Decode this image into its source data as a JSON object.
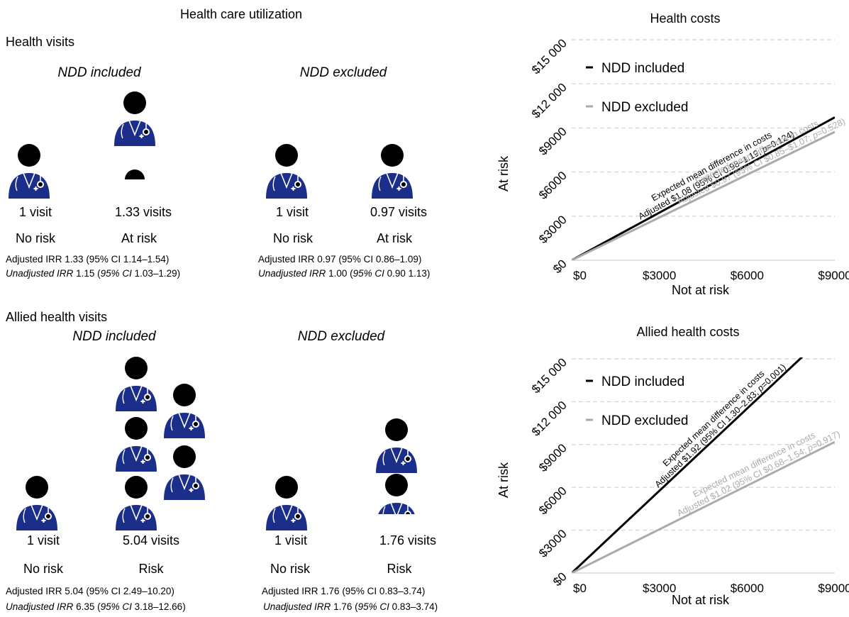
{
  "title": "Health care utilization",
  "colors": {
    "icon_body": "#1b2e8a",
    "icon_head": "#000000",
    "included": "#000000",
    "excluded": "#aaaaaa",
    "grid": "#d9d9d9"
  },
  "health_visits": {
    "label": "Health visits",
    "included": {
      "label": "NDD included",
      "no_risk": {
        "value": "1 visit",
        "group": "No risk"
      },
      "at_risk": {
        "value": "1.33 visits",
        "group": "At risk"
      },
      "adjusted": "Adjusted IRR 1.33 (95% CI 1.14–1.54)",
      "unadj_label": "Unadjusted IRR",
      "unadj_mid": " 1.15 (",
      "unadj_ci": "95% CI",
      "unadj_end": " 1.03–1.29)"
    },
    "excluded": {
      "label": "NDD excluded",
      "no_risk": {
        "value": "1 visit",
        "group": "No risk"
      },
      "at_risk": {
        "value": "0.97 visits",
        "group": "At risk"
      },
      "adjusted": "Adjusted IRR 0.97 (95% CI 0.86–1.09)",
      "unadj_label": "Unadjusted IRR",
      "unadj_mid": " 1.00 (",
      "unadj_ci": "95% CI",
      "unadj_end": " 0.90 1.13)"
    }
  },
  "allied_visits": {
    "label": "Allied health visits",
    "included": {
      "label": "NDD included",
      "no_risk": {
        "value": "1 visit",
        "group": "No risk"
      },
      "at_risk": {
        "value": "5.04 visits",
        "group": "Risk"
      },
      "adjusted": "Adjusted IRR 5.04 (95% CI 2.49–10.20)",
      "unadj_label": "Unadjusted IRR",
      "unadj_mid": " 6.35 (",
      "unadj_ci": "95% CI",
      "unadj_end": " 3.18–12.66)"
    },
    "excluded": {
      "label": "NDD excluded",
      "no_risk": {
        "value": "1 visit",
        "group": "No risk"
      },
      "at_risk": {
        "value": "1.76 visits",
        "group": "Risk"
      },
      "adjusted": "Adjusted IRR 1.76 (95% CI 0.83–3.74)",
      "unadj_label": "Unadjusted IRR",
      "unadj_mid": " 1.76 (",
      "unadj_ci": "95% CI",
      "unadj_end": " 0.83–3.74)"
    }
  },
  "chart_data": [
    {
      "type": "line",
      "title": "Health costs",
      "xlabel": "Not at risk",
      "ylabel": "At risk",
      "x_ticks": [
        "$0",
        "$3000",
        "$6000",
        "$9000"
      ],
      "y_ticks": [
        "$0",
        "$3000",
        "$6000",
        "$9000",
        "$12 000",
        "$15 000"
      ],
      "xlim": [
        0,
        9000
      ],
      "ylim": [
        0,
        15000
      ],
      "grid": true,
      "legend_position": "top-left",
      "series": [
        {
          "name": "NDD included",
          "color": "#000000",
          "x": [
            0,
            9000
          ],
          "y": [
            0,
            9720
          ],
          "annot_line1": "Expected mean difference in costs",
          "annot_line2_pre": "Adjusted $1.08 (95% CI 0.98–1.19; ",
          "annot_p": "p",
          "annot_line2_post": "=0.124)"
        },
        {
          "name": "NDD excluded",
          "color": "#aaaaaa",
          "x": [
            0,
            9000
          ],
          "y": [
            0,
            8730
          ],
          "annot_line1": "Expected mean difference in costs",
          "annot_line2_pre": "Adjusted $0.97 (95% CI $0.85–$1.07; ",
          "annot_p": "p",
          "annot_line2_post": "=0.528)"
        }
      ]
    },
    {
      "type": "line",
      "title": "Allied health costs",
      "xlabel": "Not at risk",
      "ylabel": "At risk",
      "x_ticks": [
        "$0",
        "$3000",
        "$6000",
        "$9000"
      ],
      "y_ticks": [
        "$0",
        "$3000",
        "$6000",
        "$9000",
        "$12 000",
        "$15 000"
      ],
      "xlim": [
        0,
        9000
      ],
      "ylim": [
        0,
        15000
      ],
      "grid": true,
      "legend_position": "top-left",
      "series": [
        {
          "name": "NDD included",
          "color": "#000000",
          "x": [
            0,
            9000
          ],
          "y": [
            0,
            17280
          ],
          "annot_line1": "Expected mean difference in costs",
          "annot_line2_pre": "Adjusted $1.92 (95% CI 1.30–2.83; ",
          "annot_p": "p",
          "annot_line2_post": "=0.001)"
        },
        {
          "name": "NDD excluded",
          "color": "#aaaaaa",
          "x": [
            0,
            9000
          ],
          "y": [
            0,
            9180
          ],
          "annot_line1": "Expected mean difference in costs",
          "annot_line2_pre": "Adjusted $1.02 (95% CI $0.68–1.54; ",
          "annot_p": "p",
          "annot_line2_post": "=0.917)"
        }
      ]
    }
  ]
}
